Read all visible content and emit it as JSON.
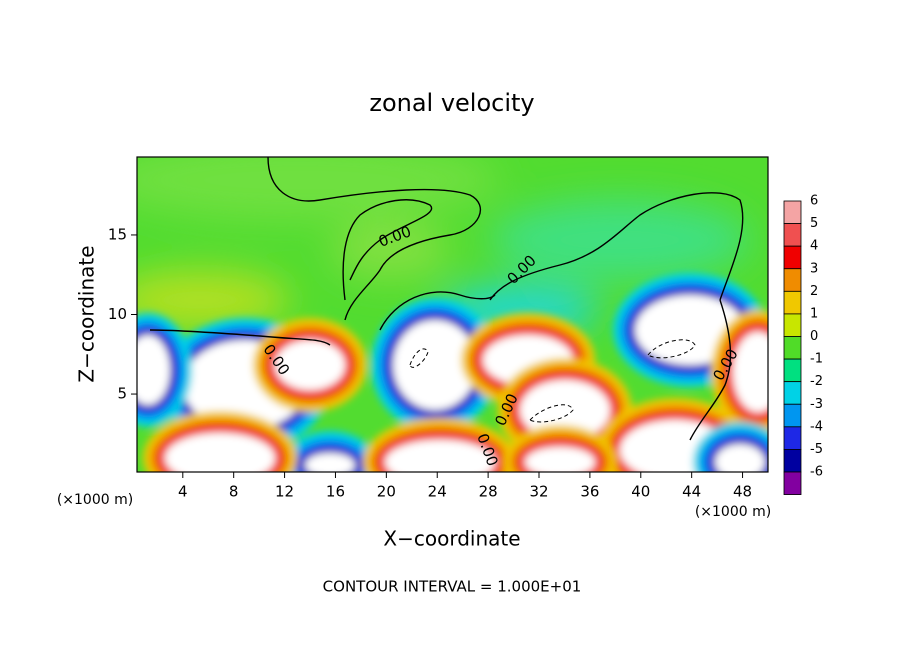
{
  "chart_data": {
    "type": "contour",
    "title": "zonal velocity",
    "x_label": "X−coordinate",
    "y_label": "Z−coordinate",
    "x_unit_label": "(×1000 m)",
    "y_unit_label": "(×1000 m)",
    "xlim": [
      0.4,
      50
    ],
    "ylim": [
      0.1,
      19.9
    ],
    "xticks": [
      4,
      8,
      12,
      16,
      20,
      24,
      28,
      32,
      36,
      40,
      44,
      48
    ],
    "yticks": [
      5,
      10,
      15
    ],
    "contour_labels": [
      "0.00",
      "0.00",
      "0.00",
      "0.00",
      "0.00",
      "0.00"
    ],
    "footer": "CONTOUR INTERVAL = 1.000E+01",
    "colorbar": {
      "ticks": [
        6,
        5,
        4,
        3,
        2,
        1,
        0,
        -1,
        -2,
        -3,
        -4,
        -5,
        -6
      ],
      "colors": [
        "#f4a4a4",
        "#f05050",
        "#f00000",
        "#f08c00",
        "#f0c800",
        "#c8e600",
        "#50dc28",
        "#00e080",
        "#00d2e6",
        "#0096f0",
        "#1e28e6",
        "#0000a0",
        "#8200a0"
      ]
    }
  }
}
